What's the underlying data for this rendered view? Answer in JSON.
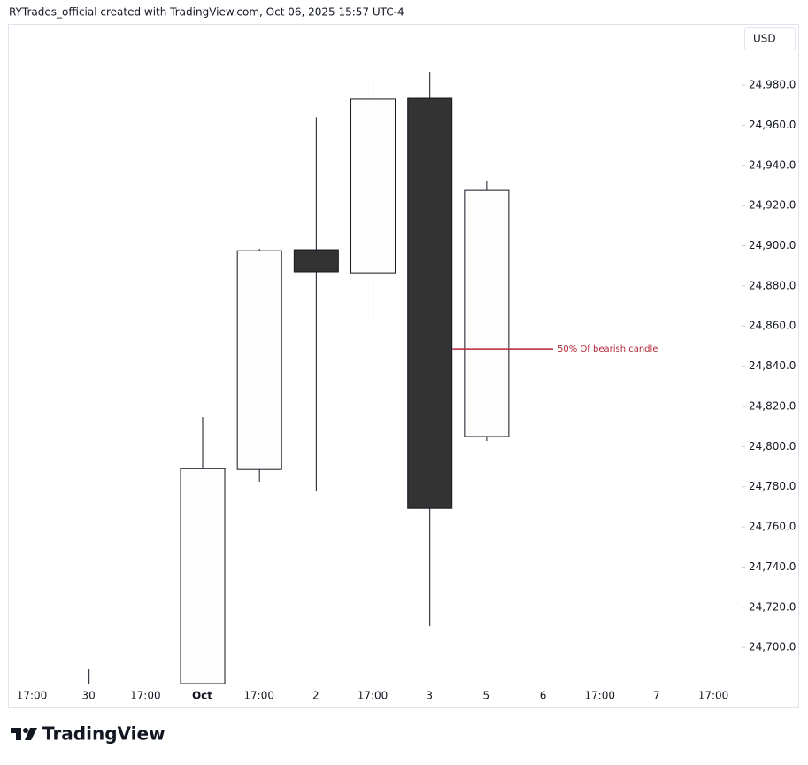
{
  "header": "RYTrades_official created with TradingView.com, Oct 06, 2025 15:57 UTC-4",
  "chart_data": {
    "type": "candlestick",
    "currency": "USD",
    "categories": [
      "17:00",
      "30",
      "17:00",
      "Oct",
      "17:00",
      "2",
      "17:00",
      "3",
      "5",
      "6",
      "17:00",
      "7",
      "17:00"
    ],
    "open": [
      null,
      null,
      null,
      null,
      24788.6,
      24898.0,
      24886.5,
      24973.4,
      24805.0,
      null,
      null,
      null,
      null
    ],
    "high": [
      null,
      24689.0,
      null,
      24814.7,
      24898.4,
      24964.0,
      24984.0,
      24986.6,
      24932.4,
      null,
      null,
      null,
      null
    ],
    "low": [
      null,
      null,
      null,
      null,
      24782.5,
      24777.6,
      24862.7,
      24710.6,
      24802.8,
      null,
      null,
      null,
      null
    ],
    "close": [
      null,
      null,
      null,
      24789.0,
      24897.5,
      24887.0,
      24973.0,
      24769.2,
      24927.5,
      null,
      null,
      null,
      null
    ],
    "ylim": [
      24682,
      25010
    ],
    "yticks": [
      {
        "value": 24700,
        "label": "24,700.0"
      },
      {
        "value": 24720,
        "label": "24,720.0"
      },
      {
        "value": 24740,
        "label": "24,740.0"
      },
      {
        "value": 24760,
        "label": "24,760.0"
      },
      {
        "value": 24780,
        "label": "24,780.0"
      },
      {
        "value": 24800,
        "label": "24,800.0"
      },
      {
        "value": 24820,
        "label": "24,820.0"
      },
      {
        "value": 24840,
        "label": "24,840.0"
      },
      {
        "value": 24860,
        "label": "24,860.0"
      },
      {
        "value": 24880,
        "label": "24,880.0"
      },
      {
        "value": 24900,
        "label": "24,900.0"
      },
      {
        "value": 24920,
        "label": "24,920.0"
      },
      {
        "value": 24940,
        "label": "24,940.0"
      },
      {
        "value": 24960,
        "label": "24,960.0"
      },
      {
        "value": 24980,
        "label": "24,980.0"
      }
    ],
    "up_color": "#fdfdfd",
    "down_color": "#333333",
    "annotation": {
      "text": "50% Of bearish candle",
      "value": 24848.6,
      "color": "#b2283a"
    }
  },
  "footer": "TradingView"
}
